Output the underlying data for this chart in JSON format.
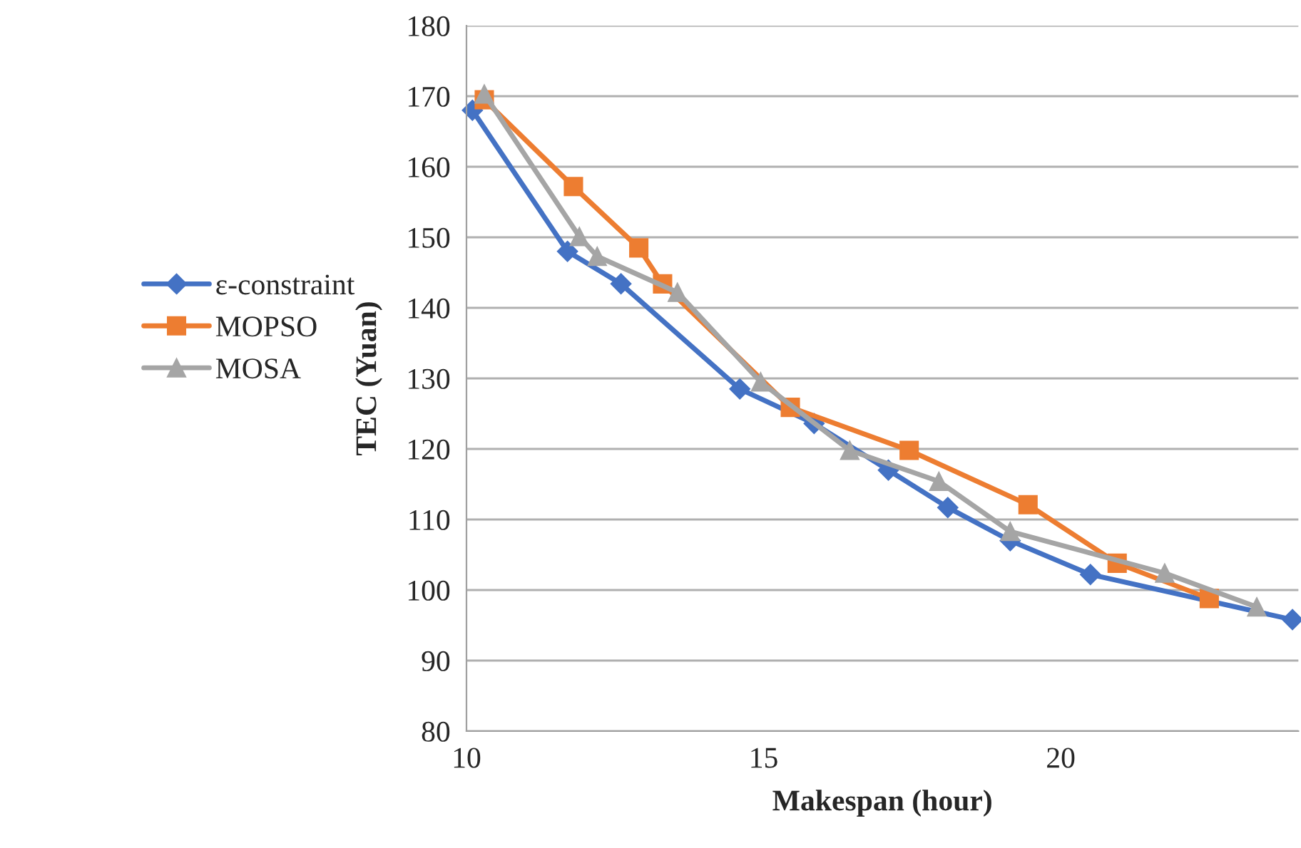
{
  "chart_data": {
    "type": "line",
    "xlabel": "Makespan (hour)",
    "ylabel": "TEC (Yuan)",
    "xlim": [
      10,
      24
    ],
    "xticks": [
      10,
      15,
      20
    ],
    "ylim": [
      80,
      180
    ],
    "yticks": [
      80,
      90,
      100,
      110,
      120,
      130,
      140,
      150,
      160,
      170,
      180
    ],
    "grid": "y",
    "legend": "left",
    "line_style": "solid",
    "series": [
      {
        "name": "ε-constraint",
        "color": "#4472c4",
        "marker": "diamond",
        "x": [
          10.1,
          11.7,
          12.6,
          14.6,
          15.85,
          17.1,
          18.1,
          19.15,
          20.5,
          23.9
        ],
        "values": [
          168,
          148,
          143.4,
          128.5,
          123.6,
          117,
          111.7,
          107,
          102.2,
          95.8
        ]
      },
      {
        "name": "MOPSO",
        "color": "#ed7d31",
        "marker": "square",
        "x": [
          10.3,
          11.8,
          12.9,
          13.3,
          15.45,
          17.45,
          19.45,
          20.95,
          22.5
        ],
        "values": [
          169.5,
          157.2,
          148.5,
          143.4,
          125.9,
          119.8,
          112.1,
          103.8,
          98.8
        ]
      },
      {
        "name": "MOSA",
        "color": "#a5a5a5",
        "marker": "triangle",
        "x": [
          10.3,
          11.9,
          12.2,
          13.55,
          14.95,
          16.45,
          17.95,
          19.15,
          21.75,
          23.3
        ],
        "values": [
          170.3,
          150.1,
          147.3,
          142.2,
          129.5,
          119.8,
          115.4,
          108.3,
          102.4,
          97.6
        ]
      }
    ]
  }
}
